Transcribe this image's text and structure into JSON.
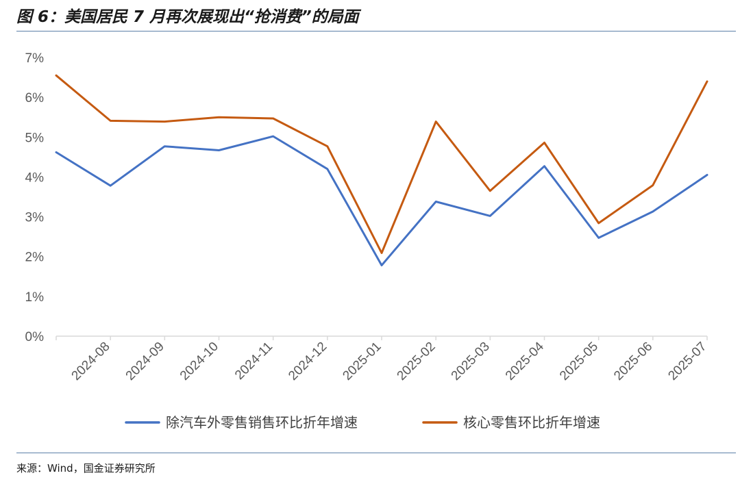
{
  "figure": {
    "title": "图 6：美国居民 7 月再次展现出“抢消费”的局面",
    "source": "来源：Wind，国金证券研究所"
  },
  "chart_data": {
    "type": "line",
    "title": "",
    "xlabel": "",
    "ylabel": "",
    "categories": [
      "2024-08",
      "2024-09",
      "2024-10",
      "2024-11",
      "2024-12",
      "2025-01",
      "2025-02",
      "2025-03",
      "2025-04",
      "2025-05",
      "2025-06",
      "2025-07"
    ],
    "x": [
      7,
      8,
      9,
      10,
      11,
      12,
      13,
      14,
      15,
      16,
      17,
      18,
      19
    ],
    "series": [
      {
        "name": "除汽车外零售销售环比折年增速",
        "color": "#4472c4",
        "values": [
          4.62,
          3.78,
          4.77,
          4.67,
          5.02,
          4.2,
          1.78,
          3.38,
          3.02,
          4.27,
          2.47,
          3.13,
          4.05
        ]
      },
      {
        "name": "核心零售环比折年增速",
        "color": "#c55a11",
        "values": [
          6.55,
          5.41,
          5.39,
          5.5,
          5.47,
          4.77,
          2.09,
          5.39,
          3.65,
          4.86,
          2.84,
          3.79,
          6.4
        ]
      }
    ],
    "ylim": [
      0,
      7
    ],
    "yticks": [
      "0%",
      "1%",
      "2%",
      "3%",
      "4%",
      "5%",
      "6%",
      "7%"
    ],
    "grid": false,
    "legend": "bottom"
  }
}
